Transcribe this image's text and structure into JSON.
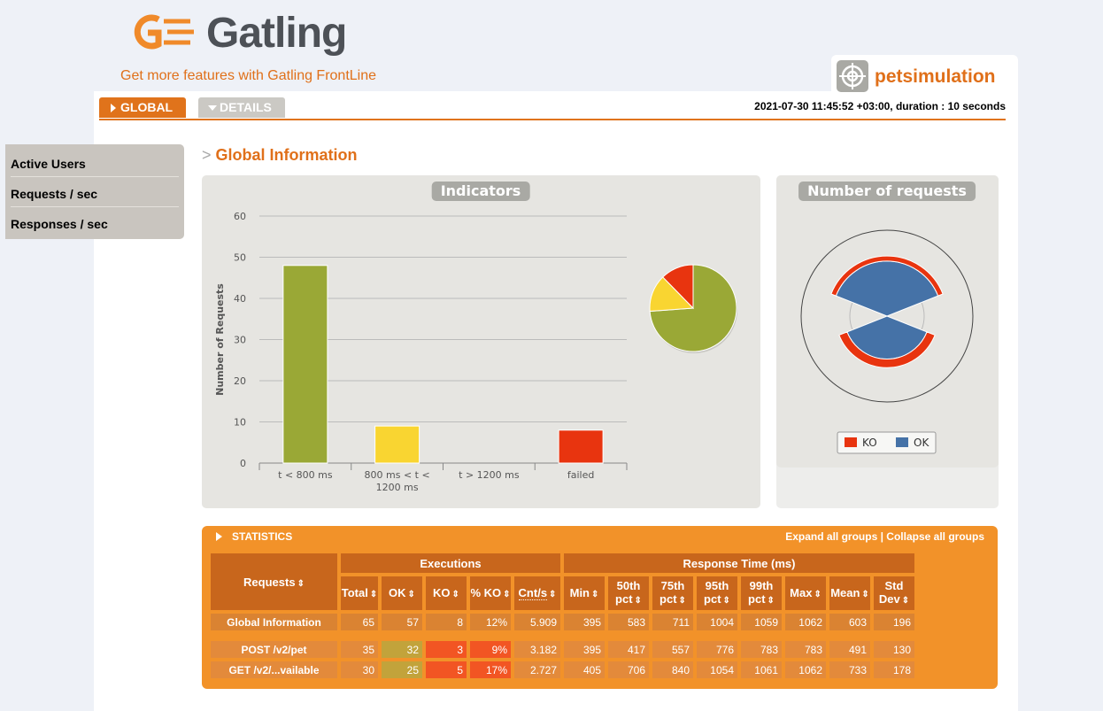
{
  "header": {
    "logo": "Gatling",
    "promo": "Get more features with Gatling FrontLine",
    "simulation": "petsimulation"
  },
  "tabs": [
    "GLOBAL",
    "DETAILS"
  ],
  "run_info": "2021-07-30 11:45:52 +03:00, duration : 10 seconds",
  "menu": [
    "Active Users",
    "Requests / sec",
    "Responses / sec"
  ],
  "section_title": "Global Information",
  "indicators": {
    "type": "bar",
    "title": "Indicators",
    "y_label": "Number of Requests",
    "categories": [
      "t < 800 ms",
      "800 ms < t < 1200 ms",
      "t > 1200 ms",
      "failed"
    ],
    "values": [
      48,
      9,
      0,
      8
    ],
    "colors": [
      "#9aa836",
      "#f9d531",
      "#f39c22",
      "#e8340f"
    ],
    "ylim": [
      0,
      60
    ],
    "yticks": [
      0,
      10,
      20,
      30,
      40,
      50,
      60
    ],
    "grid": true,
    "pie": true
  },
  "requests_chart": {
    "type": "polar",
    "title": "Number of requests",
    "series": [
      {
        "name": "KO",
        "color": "#e8340f",
        "values": [
          3,
          5
        ]
      },
      {
        "name": "OK",
        "color": "#4572a7",
        "values": [
          32,
          25
        ]
      }
    ],
    "rlim": [
      0,
      50
    ]
  },
  "statistics": {
    "title": "STATISTICS",
    "expand": "Expand all groups",
    "separator": "|",
    "collapse": "Collapse all groups",
    "requests_header": "Requests",
    "groups": [
      "Executions",
      "Response Time (ms)"
    ],
    "columns": [
      "Total",
      "OK",
      "KO",
      "% KO",
      "Cnt/s",
      "Min",
      "50th pct",
      "75th pct",
      "95th pct",
      "99th pct",
      "Max",
      "Mean",
      "Std Dev"
    ],
    "rows": [
      {
        "name": "Global Information",
        "cells": [
          65,
          57,
          8,
          "12%",
          5.909,
          395,
          583,
          711,
          1004,
          1059,
          1062,
          603,
          196
        ]
      },
      {
        "name": "POST /v2/pet",
        "cells": [
          35,
          32,
          3,
          "9%",
          3.182,
          395,
          417,
          557,
          776,
          783,
          783,
          491,
          130
        ]
      },
      {
        "name": "GET /v2/...vailable",
        "cells": [
          30,
          25,
          5,
          "17%",
          2.727,
          405,
          706,
          840,
          1054,
          1061,
          1062,
          733,
          178
        ]
      }
    ]
  }
}
